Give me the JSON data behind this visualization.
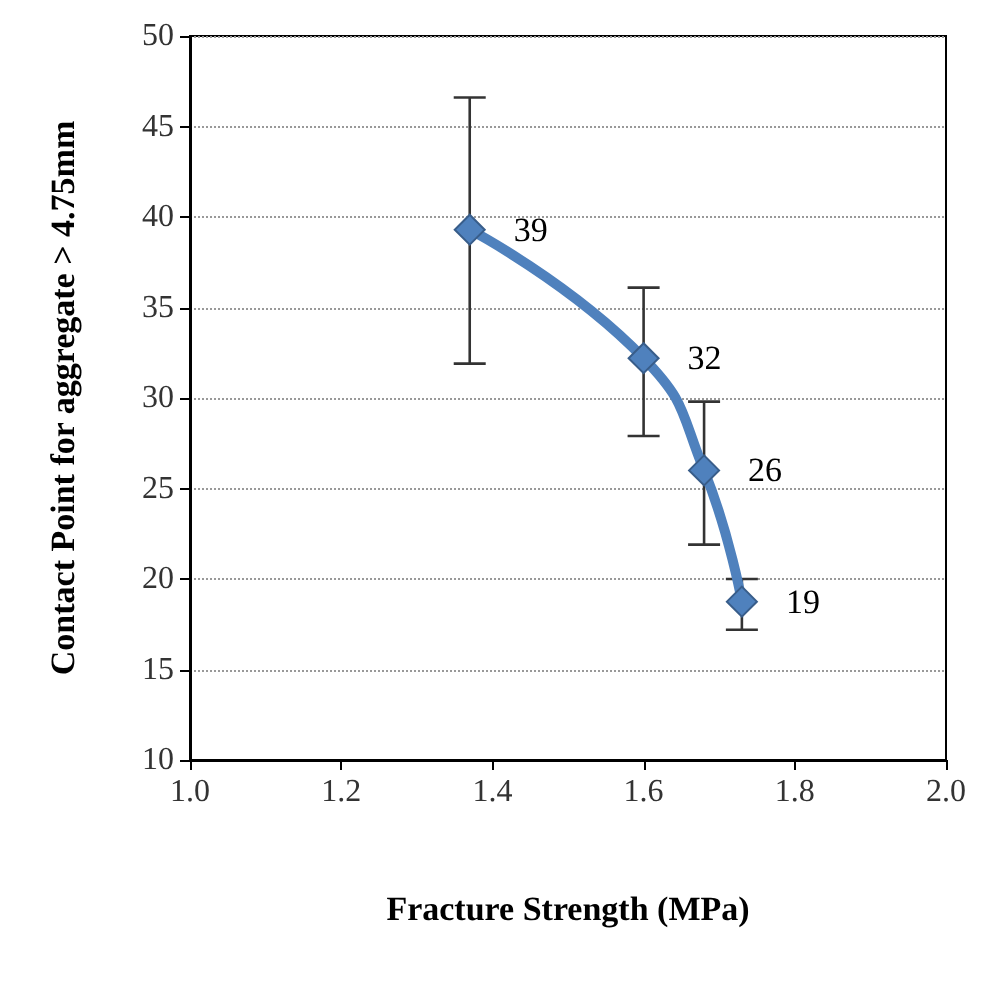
{
  "chart_data": {
    "type": "line",
    "xlabel": "Fracture Strength (MPa)",
    "ylabel": "Contact Point for aggregate > 4.75mm",
    "x": [
      1.37,
      1.6,
      1.68,
      1.73
    ],
    "series": [
      {
        "color": "#4f81bd",
        "values": [
          39.3,
          32.2,
          26.0,
          18.75
        ],
        "errors": [
          [
            31.9,
            46.6
          ],
          [
            27.9,
            36.1
          ],
          [
            21.9,
            29.8
          ],
          [
            17.2,
            20.0
          ]
        ],
        "value_labels": [
          "39",
          "32",
          "26",
          "19"
        ]
      }
    ],
    "xlim": [
      1.0,
      2.0
    ],
    "xticks": [
      {
        "value": 1.0,
        "label": "1.0"
      },
      {
        "value": 1.2,
        "label": "1.2"
      },
      {
        "value": 1.4,
        "label": "1.4"
      },
      {
        "value": 1.6,
        "label": "1.6"
      },
      {
        "value": 1.8,
        "label": "1.8"
      },
      {
        "value": 2.0,
        "label": "2.0"
      }
    ],
    "ylim": [
      10,
      50
    ],
    "yticks": [
      10,
      15,
      20,
      25,
      30,
      35,
      40,
      45,
      50
    ],
    "grid": "y",
    "marker": "diamond"
  }
}
